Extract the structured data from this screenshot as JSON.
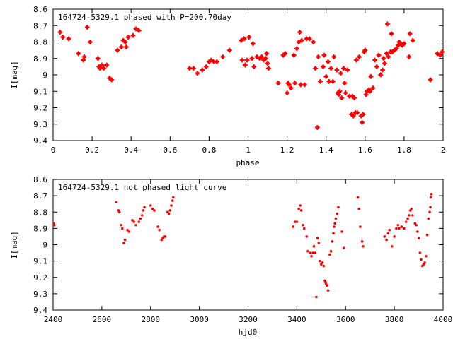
{
  "chart_data": [
    {
      "type": "scatter",
      "title": "164724-5329.1 phased with P=200.70day",
      "xlabel": "phase",
      "ylabel": "I[mag]",
      "xlim": [
        0,
        2
      ],
      "ylim": [
        8.6,
        9.4
      ],
      "y_inverted": true,
      "xticks": [
        "0",
        "0.2",
        "0.4",
        "0.6",
        "0.8",
        "1",
        "1.2",
        "1.4",
        "1.6",
        "1.8",
        "2"
      ],
      "yticks": [
        "8.6",
        "8.7",
        "8.8",
        "8.9",
        "9",
        "9.1",
        "9.2",
        "9.3",
        "9.4"
      ],
      "marker_color": "#ff0000",
      "grid": false,
      "series": [
        {
          "points": [
            [
              0.036,
              8.74
            ],
            [
              0.05,
              8.77
            ],
            [
              0.08,
              8.78
            ],
            [
              0.13,
              8.87
            ],
            [
              0.155,
              8.91
            ],
            [
              0.16,
              8.89
            ],
            [
              0.175,
              8.71
            ],
            [
              0.19,
              8.8
            ],
            [
              0.23,
              8.9
            ],
            [
              0.235,
              8.95
            ],
            [
              0.24,
              8.96
            ],
            [
              0.25,
              8.94
            ],
            [
              0.26,
              8.96
            ],
            [
              0.275,
              8.94
            ],
            [
              0.29,
              9.02
            ],
            [
              0.3,
              9.03
            ],
            [
              0.33,
              8.85
            ],
            [
              0.35,
              8.83
            ],
            [
              0.36,
              8.79
            ],
            [
              0.37,
              8.8
            ],
            [
              0.375,
              8.83
            ],
            [
              0.385,
              8.77
            ],
            [
              0.41,
              8.76
            ],
            [
              0.425,
              8.72
            ],
            [
              0.44,
              8.73
            ],
            [
              0.7,
              8.96
            ],
            [
              0.72,
              8.96
            ],
            [
              0.74,
              8.99
            ],
            [
              0.765,
              8.97
            ],
            [
              0.785,
              8.95
            ],
            [
              0.8,
              8.92
            ],
            [
              0.81,
              8.91
            ],
            [
              0.825,
              8.92
            ],
            [
              0.84,
              8.92
            ],
            [
              0.87,
              8.89
            ],
            [
              0.905,
              8.85
            ],
            [
              0.965,
              8.79
            ],
            [
              0.98,
              8.78
            ],
            [
              0.97,
              8.91
            ],
            [
              0.985,
              8.94
            ],
            [
              0.995,
              8.91
            ],
            [
              1.005,
              8.77
            ],
            [
              1.02,
              8.9
            ],
            [
              1.025,
              8.81
            ],
            [
              1.03,
              8.95
            ],
            [
              1.045,
              8.89
            ],
            [
              1.06,
              8.9
            ],
            [
              1.07,
              8.89
            ],
            [
              1.08,
              8.91
            ],
            [
              1.09,
              8.9
            ],
            [
              1.095,
              8.87
            ],
            [
              1.1,
              8.93
            ],
            [
              1.105,
              8.96
            ],
            [
              1.155,
              9.05
            ],
            [
              1.18,
              8.88
            ],
            [
              1.19,
              8.87
            ],
            [
              1.2,
              9.11
            ],
            [
              1.205,
              9.05
            ],
            [
              1.21,
              9.06
            ],
            [
              1.22,
              9.08
            ],
            [
              1.235,
              8.88
            ],
            [
              1.24,
              9.05
            ],
            [
              1.25,
              8.84
            ],
            [
              1.26,
              8.8
            ],
            [
              1.265,
              8.74
            ],
            [
              1.27,
              9.06
            ],
            [
              1.275,
              8.79
            ],
            [
              1.29,
              9.06
            ],
            [
              1.3,
              8.78
            ],
            [
              1.315,
              8.78
            ],
            [
              1.335,
              8.8
            ],
            [
              1.345,
              8.96
            ],
            [
              1.355,
              9.32
            ],
            [
              1.36,
              8.89
            ],
            [
              1.37,
              9.04
            ],
            [
              1.385,
              8.95
            ],
            [
              1.39,
              8.88
            ],
            [
              1.4,
              9.01
            ],
            [
              1.41,
              8.92
            ],
            [
              1.415,
              9.04
            ],
            [
              1.425,
              8.96
            ],
            [
              1.435,
              9.04
            ],
            [
              1.44,
              8.89
            ],
            [
              1.455,
              8.97
            ],
            [
              1.46,
              9.11
            ],
            [
              1.465,
              9.12
            ],
            [
              1.47,
              9.1
            ],
            [
              1.475,
              8.99
            ],
            [
              1.48,
              9.14
            ],
            [
              1.49,
              8.96
            ],
            [
              1.495,
              9.05
            ],
            [
              1.5,
              9.11
            ],
            [
              1.51,
              8.97
            ],
            [
              1.52,
              9.13
            ],
            [
              1.53,
              9.24
            ],
            [
              1.535,
              9.13
            ],
            [
              1.54,
              9.25
            ],
            [
              1.545,
              9.14
            ],
            [
              1.55,
              9.23
            ],
            [
              1.555,
              8.91
            ],
            [
              1.56,
              9.23
            ],
            [
              1.57,
              8.89
            ],
            [
              1.58,
              9.25
            ],
            [
              1.585,
              9.29
            ],
            [
              1.59,
              9.24
            ],
            [
              1.595,
              8.86
            ],
            [
              1.6,
              8.85
            ],
            [
              1.605,
              9.12
            ],
            [
              1.61,
              9.1
            ],
            [
              1.62,
              9.09
            ],
            [
              1.625,
              9.1
            ],
            [
              1.63,
              9.01
            ],
            [
              1.64,
              9.08
            ],
            [
              1.65,
              8.91
            ],
            [
              1.66,
              8.95
            ],
            [
              1.67,
              8.88
            ],
            [
              1.68,
              9.0
            ],
            [
              1.69,
              8.97
            ],
            [
              1.695,
              8.9
            ],
            [
              1.7,
              8.93
            ],
            [
              1.71,
              8.87
            ],
            [
              1.715,
              8.69
            ],
            [
              1.72,
              8.89
            ],
            [
              1.73,
              8.86
            ],
            [
              1.735,
              8.75
            ],
            [
              1.74,
              8.86
            ],
            [
              1.75,
              8.85
            ],
            [
              1.76,
              8.84
            ],
            [
              1.77,
              8.82
            ],
            [
              1.775,
              8.8
            ],
            [
              1.785,
              8.81
            ],
            [
              1.79,
              8.82
            ],
            [
              1.8,
              8.81
            ],
            [
              1.825,
              8.89
            ],
            [
              1.83,
              8.75
            ],
            [
              1.845,
              8.79
            ],
            [
              1.935,
              9.03
            ],
            [
              1.97,
              8.87
            ],
            [
              1.985,
              8.88
            ],
            [
              1.995,
              8.86
            ]
          ]
        }
      ]
    },
    {
      "type": "scatter",
      "title": "164724-5329.1 not phased light curve",
      "xlabel": "hjd0",
      "ylabel": "I[mag]",
      "xlim": [
        2400,
        4000
      ],
      "ylim": [
        8.6,
        9.4
      ],
      "y_inverted": true,
      "xticks": [
        "2400",
        "2600",
        "2800",
        "3000",
        "3200",
        "3400",
        "3600",
        "3800",
        "4000"
      ],
      "yticks": [
        "8.6",
        "8.7",
        "8.8",
        "8.9",
        "9",
        "9.1",
        "9.2",
        "9.3",
        "9.4"
      ],
      "marker_color": "#ff0000",
      "grid": false,
      "series": [
        {
          "points": [
            [
              2403,
              8.87
            ],
            [
              2405,
              8.88
            ],
            [
              2660,
              8.74
            ],
            [
              2668,
              8.79
            ],
            [
              2672,
              8.8
            ],
            [
              2680,
              8.88
            ],
            [
              2684,
              8.9
            ],
            [
              2690,
              8.99
            ],
            [
              2695,
              8.97
            ],
            [
              2705,
              8.91
            ],
            [
              2712,
              8.92
            ],
            [
              2725,
              8.85
            ],
            [
              2732,
              8.86
            ],
            [
              2740,
              8.88
            ],
            [
              2752,
              8.86
            ],
            [
              2758,
              8.84
            ],
            [
              2765,
              8.82
            ],
            [
              2770,
              8.79
            ],
            [
              2775,
              8.77
            ],
            [
              2800,
              8.76
            ],
            [
              2808,
              8.78
            ],
            [
              2815,
              8.79
            ],
            [
              2830,
              8.89
            ],
            [
              2836,
              8.91
            ],
            [
              2845,
              8.97
            ],
            [
              2850,
              8.96
            ],
            [
              2855,
              8.95
            ],
            [
              2860,
              8.95
            ],
            [
              2870,
              8.8
            ],
            [
              2875,
              8.81
            ],
            [
              2880,
              8.79
            ],
            [
              2885,
              8.76
            ],
            [
              2890,
              8.73
            ],
            [
              2893,
              8.71
            ],
            [
              3385,
              8.89
            ],
            [
              3393,
              8.86
            ],
            [
              3400,
              8.86
            ],
            [
              3408,
              8.78
            ],
            [
              3414,
              8.76
            ],
            [
              3418,
              8.79
            ],
            [
              3425,
              8.88
            ],
            [
              3430,
              8.9
            ],
            [
              3440,
              8.95
            ],
            [
              3445,
              9.04
            ],
            [
              3455,
              9.05
            ],
            [
              3460,
              9.07
            ],
            [
              3466,
              9.05
            ],
            [
              3470,
              9.01
            ],
            [
              3475,
              9.05
            ],
            [
              3480,
              9.32
            ],
            [
              3485,
              8.96
            ],
            [
              3490,
              8.99
            ],
            [
              3495,
              9.1
            ],
            [
              3500,
              9.12
            ],
            [
              3505,
              9.11
            ],
            [
              3510,
              9.13
            ],
            [
              3515,
              9.22
            ],
            [
              3518,
              9.23
            ],
            [
              3520,
              9.24
            ],
            [
              3525,
              9.25
            ],
            [
              3528,
              9.28
            ],
            [
              3535,
              9.06
            ],
            [
              3540,
              9.04
            ],
            [
              3545,
              8.98
            ],
            [
              3550,
              8.93
            ],
            [
              3553,
              8.89
            ],
            [
              3556,
              8.87
            ],
            [
              3560,
              8.84
            ],
            [
              3565,
              8.81
            ],
            [
              3570,
              8.77
            ],
            [
              3585,
              8.92
            ],
            [
              3592,
              9.02
            ],
            [
              3650,
              8.71
            ],
            [
              3655,
              8.78
            ],
            [
              3660,
              8.89
            ],
            [
              3668,
              8.98
            ],
            [
              3672,
              9.01
            ],
            [
              3760,
              8.95
            ],
            [
              3768,
              8.97
            ],
            [
              3775,
              8.93
            ],
            [
              3780,
              8.91
            ],
            [
              3790,
              9.01
            ],
            [
              3800,
              8.95
            ],
            [
              3808,
              8.9
            ],
            [
              3815,
              8.88
            ],
            [
              3820,
              8.9
            ],
            [
              3830,
              8.89
            ],
            [
              3840,
              8.9
            ],
            [
              3848,
              8.86
            ],
            [
              3855,
              8.84
            ],
            [
              3860,
              8.82
            ],
            [
              3866,
              8.79
            ],
            [
              3870,
              8.78
            ],
            [
              3875,
              8.82
            ],
            [
              3885,
              8.87
            ],
            [
              3890,
              8.88
            ],
            [
              3895,
              8.92
            ],
            [
              3900,
              8.96
            ],
            [
              3905,
              9.05
            ],
            [
              3910,
              9.09
            ],
            [
              3915,
              9.13
            ],
            [
              3920,
              9.12
            ],
            [
              3925,
              9.11
            ],
            [
              3930,
              9.07
            ],
            [
              3935,
              8.94
            ],
            [
              3940,
              8.84
            ],
            [
              3945,
              8.8
            ],
            [
              3948,
              8.77
            ],
            [
              3950,
              8.71
            ],
            [
              3952,
              8.69
            ]
          ]
        }
      ]
    }
  ]
}
